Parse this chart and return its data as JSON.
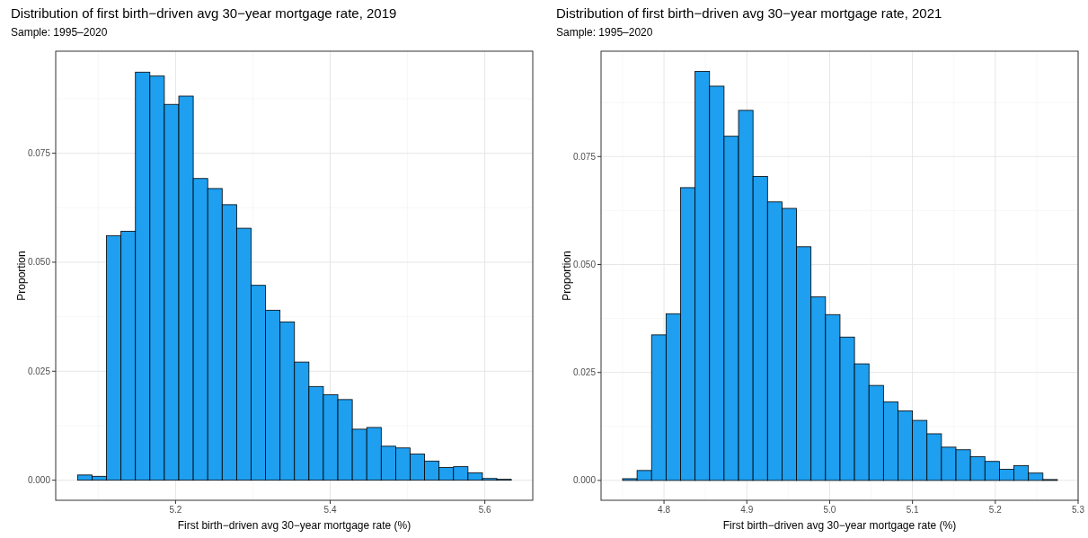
{
  "chart_data": [
    {
      "type": "histogram",
      "title": "Distribution of first birth−driven avg 30−year mortgage rate, 2019",
      "subtitle": "Sample: 1995–2020",
      "xlabel": "First birth−driven avg 30−year mortgage rate (%)",
      "ylabel": "Proportion",
      "color": "#1e9ff0",
      "grid": true,
      "bins": [
        5.0733,
        5.092,
        5.1107,
        5.1294,
        5.1481,
        5.1668,
        5.1855,
        5.2042,
        5.2229,
        5.2416,
        5.2603,
        5.279,
        5.2977,
        5.3164,
        5.3351,
        5.3538,
        5.3725,
        5.3912,
        5.4099,
        5.4286,
        5.4473,
        5.466,
        5.4847,
        5.5034,
        5.5221,
        5.5408,
        5.5595,
        5.5782,
        5.5969,
        5.6156,
        5.6343
      ],
      "values": [
        0.0012,
        0.0009,
        0.0561,
        0.0571,
        0.0936,
        0.0927,
        0.0862,
        0.0881,
        0.0692,
        0.0669,
        0.0632,
        0.0578,
        0.0447,
        0.039,
        0.0363,
        0.0271,
        0.0215,
        0.0196,
        0.0185,
        0.0117,
        0.0121,
        0.0078,
        0.0074,
        0.006,
        0.0044,
        0.0029,
        0.0031,
        0.0017,
        0.0004,
        0.0002
      ],
      "xlim": [
        5.045,
        5.662
      ],
      "ylim": [
        -0.0046,
        0.0984
      ],
      "xticks": [
        5.2,
        5.4,
        5.6
      ],
      "yticks": [
        {
          "value": 0,
          "label": "0.000"
        },
        {
          "value": 0.025,
          "label": "0.025"
        },
        {
          "value": 0.05,
          "label": "0.050"
        },
        {
          "value": 0.075,
          "label": "0.075"
        }
      ]
    },
    {
      "type": "histogram",
      "title": "Distribution of first birth−driven avg 30−year mortgage rate, 2021",
      "subtitle": "Sample: 1995–2020",
      "xlabel": "First birth−driven avg 30−year mortgage rate (%)",
      "ylabel": "Proportion",
      "color": "#1e9ff0",
      "grid": true,
      "bins": [
        4.75,
        4.7675,
        4.785,
        4.8025,
        4.82,
        4.8375,
        4.855,
        4.8725,
        4.89,
        4.9075,
        4.925,
        4.9425,
        4.96,
        4.9775,
        4.995,
        5.0125,
        5.03,
        5.0475,
        5.065,
        5.0825,
        5.1,
        5.1175,
        5.135,
        5.1525,
        5.17,
        5.1875,
        5.205,
        5.2225,
        5.24,
        5.2575,
        5.275
      ],
      "values": [
        0.0004,
        0.0023,
        0.0337,
        0.0386,
        0.0678,
        0.0947,
        0.0913,
        0.0797,
        0.0857,
        0.0704,
        0.0645,
        0.063,
        0.0541,
        0.0425,
        0.0384,
        0.0332,
        0.027,
        0.022,
        0.0182,
        0.0161,
        0.0139,
        0.0108,
        0.0077,
        0.0071,
        0.0055,
        0.0044,
        0.0026,
        0.0034,
        0.0017,
        0.0002
      ],
      "xlim": [
        4.724,
        5.3
      ],
      "ylim": [
        -0.0046,
        0.0994
      ],
      "xticks": [
        4.8,
        4.9,
        {
          "value": 5,
          "label": "5.0"
        },
        5.1,
        5.2,
        5.3
      ],
      "yticks": [
        {
          "value": 0,
          "label": "0.000"
        },
        {
          "value": 0.025,
          "label": "0.025"
        },
        {
          "value": 0.05,
          "label": "0.050"
        },
        {
          "value": 0.075,
          "label": "0.075"
        }
      ]
    }
  ]
}
